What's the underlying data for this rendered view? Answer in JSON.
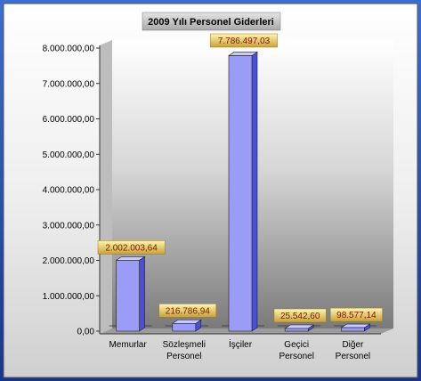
{
  "chart_data": {
    "type": "bar",
    "title": "2009 Yılı Personel Giderleri",
    "categories": [
      [
        "Memurlar"
      ],
      [
        "Sözleşmeli",
        "Personel"
      ],
      [
        "İşçiler"
      ],
      [
        "Geçici",
        "Personel"
      ],
      [
        "Diğer",
        "Personel"
      ]
    ],
    "values": [
      2002003.64,
      216786.94,
      7786497.03,
      25542.6,
      98577.14
    ],
    "value_labels": [
      "2.002.003,64",
      "216.786,94",
      "7.786.497,03",
      "25.542,60",
      "98.577,14"
    ],
    "yticks": [
      "0,00",
      "1.000.000,00",
      "2.000.000,00",
      "3.000.000,00",
      "4.000.000,00",
      "5.000.000,00",
      "6.000.000,00",
      "7.000.000,00",
      "8.000.000,00"
    ],
    "ylim": [
      0,
      8000000
    ],
    "grid": false,
    "legend": "none",
    "colors": {
      "bar_front": "#9a9cf6",
      "bar_side": "#4b4ed6",
      "bar_top": "#c9caff",
      "label_bg_top": "#fff6b0",
      "label_bg_bottom": "#c8a13a",
      "title_bg": "#c7c7c7",
      "frame": "#1e3a8a",
      "wall_top": "#ffffff",
      "wall_bottom": "#7a7a7a"
    }
  }
}
